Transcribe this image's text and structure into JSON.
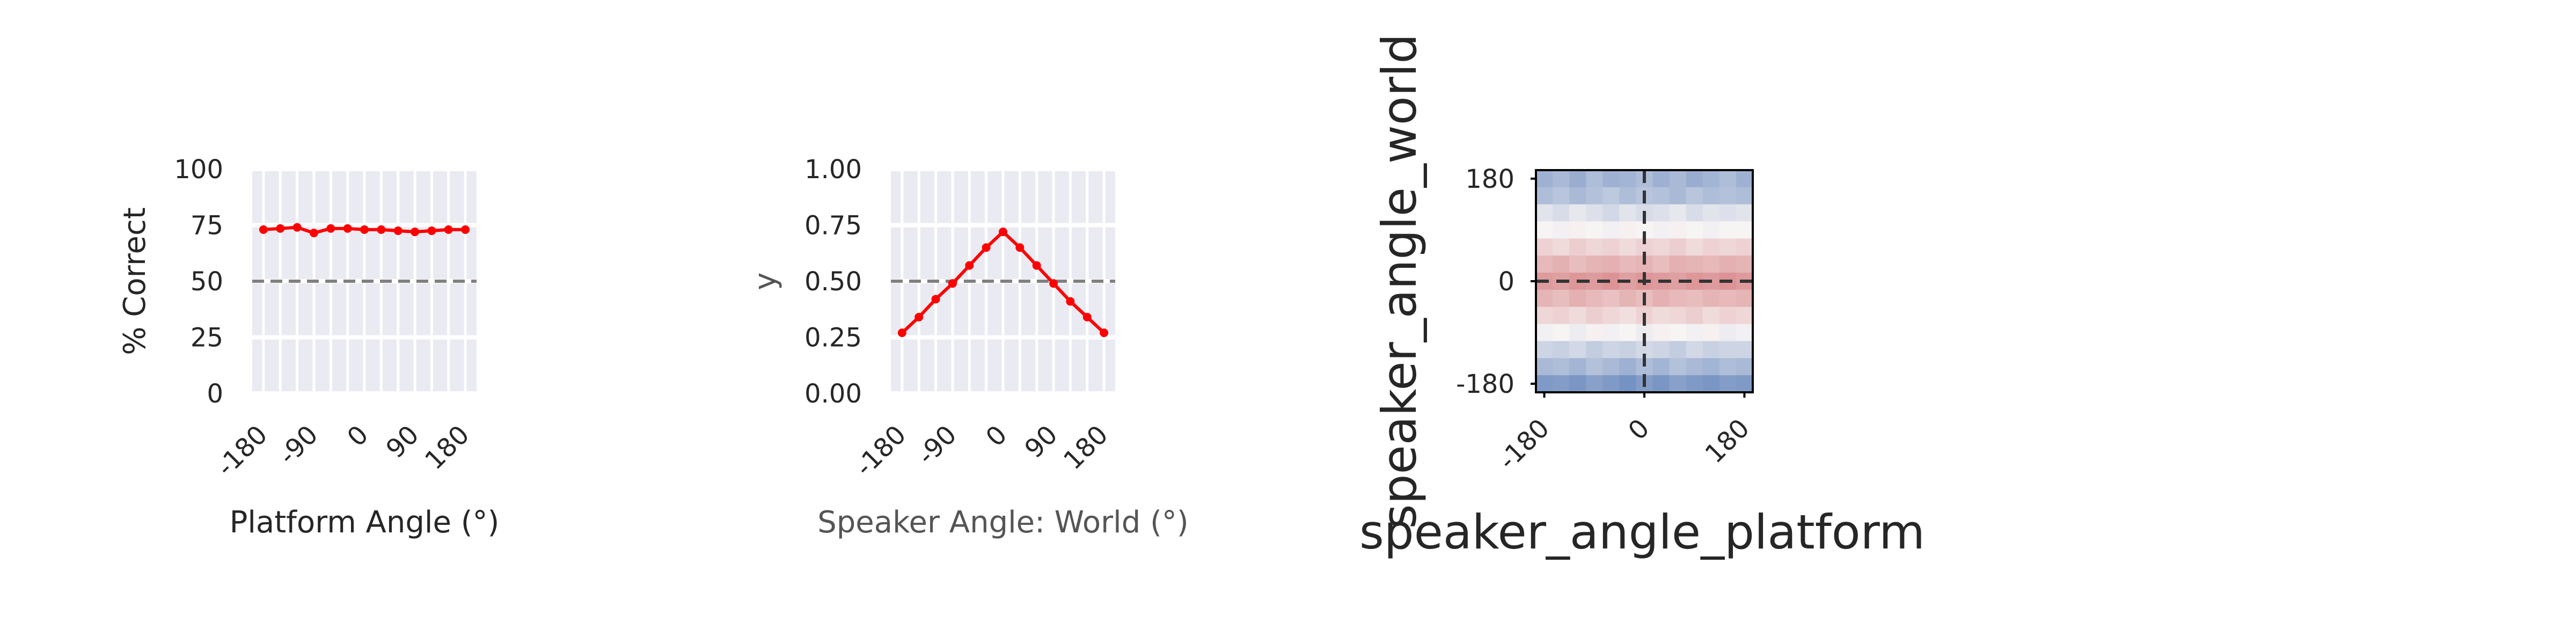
{
  "chart_data": [
    {
      "type": "line",
      "xlabel": "Platform Angle (°)",
      "ylabel": "% Correct",
      "xlim": [
        -200,
        200
      ],
      "ylim": [
        0,
        100
      ],
      "xticks": [
        -180,
        -90,
        0,
        90,
        180
      ],
      "xtick_labels": [
        "-180",
        "-90",
        "0",
        "90",
        "180"
      ],
      "yticks": [
        0,
        25,
        50,
        75,
        100
      ],
      "ytick_labels": [
        "0",
        "25",
        "50",
        "75",
        "100"
      ],
      "grid": true,
      "x": [
        -180,
        -150,
        -120,
        -90,
        -60,
        -30,
        0,
        30,
        60,
        90,
        120,
        150,
        180
      ],
      "series": [
        {
          "values": [
            73,
            73.5,
            74,
            71.5,
            73.5,
            73.5,
            73,
            73,
            72.5,
            72,
            72.5,
            73,
            73
          ],
          "color": "#ff0000"
        }
      ],
      "reference_line": {
        "y": 50,
        "style": "dashed",
        "color": "#808080"
      }
    },
    {
      "type": "line",
      "xlabel": "Speaker Angle: World (°)",
      "ylabel": "y",
      "xlim": [
        -200,
        200
      ],
      "ylim": [
        0,
        1
      ],
      "xticks": [
        -180,
        -90,
        0,
        90,
        180
      ],
      "xtick_labels": [
        "-180",
        "-90",
        "0",
        "90",
        "180"
      ],
      "yticks": [
        0,
        0.25,
        0.5,
        0.75,
        1
      ],
      "ytick_labels": [
        "0.00",
        "0.25",
        "0.50",
        "0.75",
        "1.00"
      ],
      "grid": true,
      "x": [
        -180,
        -150,
        -120,
        -90,
        -60,
        -30,
        0,
        30,
        60,
        90,
        120,
        150,
        180
      ],
      "series": [
        {
          "values": [
            0.27,
            0.34,
            0.42,
            0.49,
            0.57,
            0.65,
            0.72,
            0.65,
            0.57,
            0.49,
            0.41,
            0.34,
            0.27
          ],
          "color": "#ff0000"
        }
      ],
      "reference_line": {
        "y": 0.5,
        "style": "dashed",
        "color": "#808080"
      }
    },
    {
      "type": "heatmap",
      "xlabel": "speaker_angle_platform",
      "ylabel": "speaker_angle_world",
      "xlim": [
        -195,
        195
      ],
      "ylim": [
        -195,
        195
      ],
      "xticks": [
        -180,
        0,
        180
      ],
      "xtick_labels": [
        "-180",
        "0",
        "180"
      ],
      "yticks": [
        -180,
        0,
        180
      ],
      "ytick_labels": [
        "-180",
        "0",
        "180"
      ],
      "colormap": {
        "low": "#5a7eb8",
        "mid": "#f7f4f4",
        "high": "#c2363a",
        "center": 0.5
      },
      "reference_lines": [
        {
          "x": 0,
          "style": "dashed"
        },
        {
          "y": 0,
          "style": "dashed"
        }
      ],
      "rows_world_angle": [
        180,
        150,
        120,
        90,
        60,
        30,
        0,
        -30,
        -60,
        -90,
        -120,
        -150,
        -180
      ],
      "cols_platform_angle": [
        -180,
        -150,
        -120,
        -90,
        -60,
        -30,
        0,
        30,
        60,
        90,
        120,
        150,
        180
      ],
      "values": [
        [
          0.33,
          0.35,
          0.32,
          0.36,
          0.33,
          0.34,
          0.36,
          0.33,
          0.35,
          0.32,
          0.34,
          0.36,
          0.33
        ],
        [
          0.36,
          0.38,
          0.35,
          0.37,
          0.39,
          0.36,
          0.38,
          0.37,
          0.35,
          0.38,
          0.36,
          0.37,
          0.36
        ],
        [
          0.46,
          0.44,
          0.47,
          0.45,
          0.43,
          0.46,
          0.44,
          0.45,
          0.47,
          0.44,
          0.46,
          0.45,
          0.46
        ],
        [
          0.5,
          0.49,
          0.51,
          0.5,
          0.49,
          0.51,
          0.5,
          0.49,
          0.51,
          0.5,
          0.49,
          0.5,
          0.5
        ],
        [
          0.58,
          0.56,
          0.59,
          0.57,
          0.58,
          0.56,
          0.58,
          0.57,
          0.59,
          0.56,
          0.58,
          0.57,
          0.58
        ],
        [
          0.64,
          0.66,
          0.63,
          0.65,
          0.66,
          0.64,
          0.65,
          0.63,
          0.66,
          0.65,
          0.64,
          0.66,
          0.65
        ],
        [
          0.71,
          0.7,
          0.72,
          0.71,
          0.73,
          0.7,
          0.72,
          0.71,
          0.7,
          0.72,
          0.71,
          0.73,
          0.71
        ],
        [
          0.65,
          0.63,
          0.66,
          0.64,
          0.62,
          0.65,
          0.63,
          0.66,
          0.64,
          0.63,
          0.65,
          0.64,
          0.65
        ],
        [
          0.57,
          0.58,
          0.56,
          0.59,
          0.57,
          0.55,
          0.58,
          0.56,
          0.57,
          0.59,
          0.56,
          0.58,
          0.57
        ],
        [
          0.49,
          0.5,
          0.48,
          0.51,
          0.49,
          0.5,
          0.48,
          0.51,
          0.5,
          0.49,
          0.51,
          0.48,
          0.49
        ],
        [
          0.42,
          0.41,
          0.43,
          0.4,
          0.42,
          0.41,
          0.43,
          0.42,
          0.4,
          0.43,
          0.41,
          0.42,
          0.42
        ],
        [
          0.35,
          0.36,
          0.34,
          0.37,
          0.35,
          0.33,
          0.36,
          0.34,
          0.37,
          0.35,
          0.34,
          0.36,
          0.35
        ],
        [
          0.27,
          0.28,
          0.26,
          0.29,
          0.27,
          0.25,
          0.28,
          0.26,
          0.29,
          0.27,
          0.26,
          0.28,
          0.27
        ]
      ]
    }
  ]
}
